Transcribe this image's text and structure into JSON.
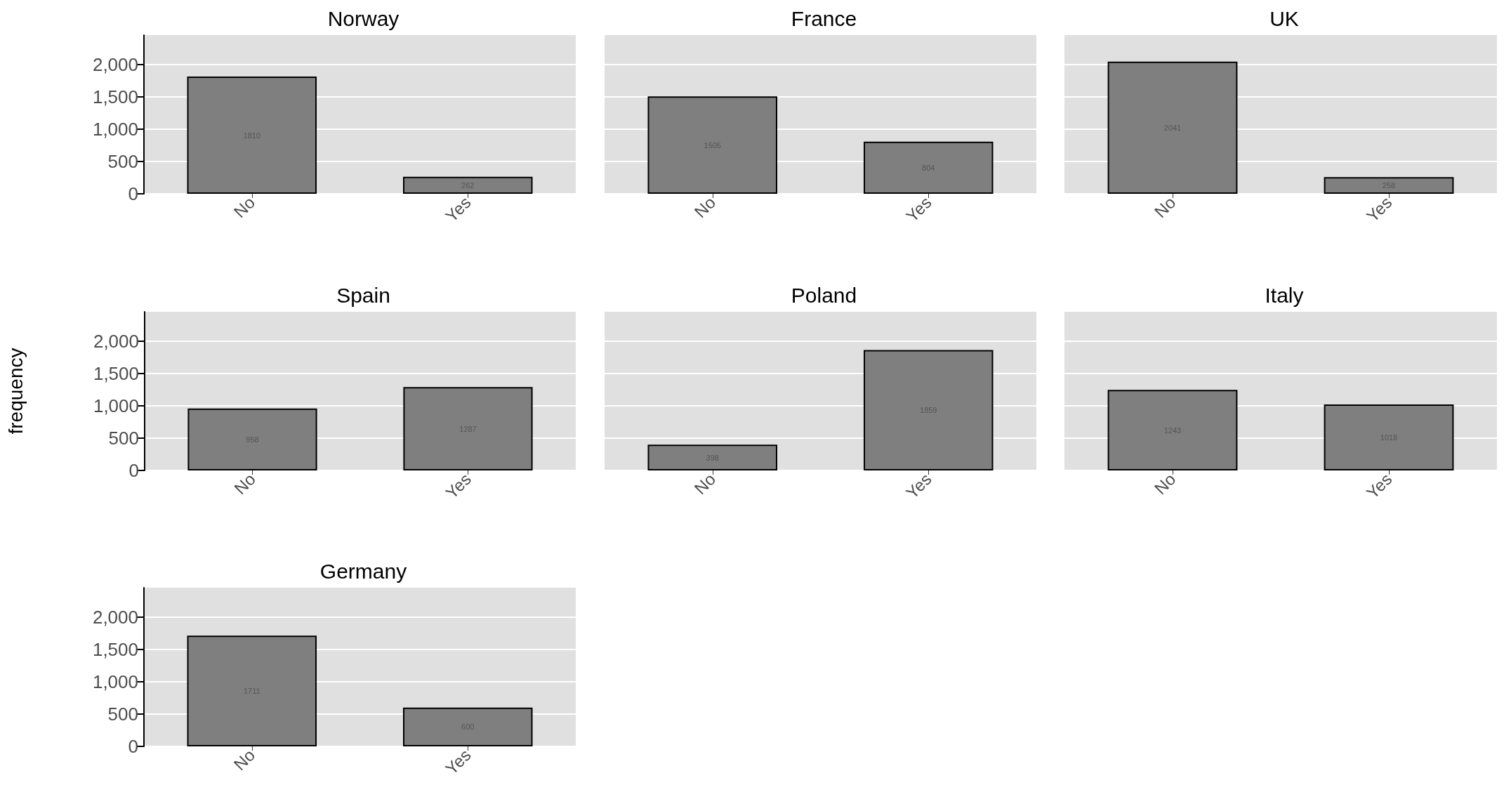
{
  "chart_data": [
    {
      "type": "bar",
      "title": "Norway",
      "categories": [
        "No",
        "Yes"
      ],
      "values": [
        1810,
        262
      ],
      "color": "#7f7f7f",
      "ylim": [
        0,
        2450
      ],
      "yticks": [
        0,
        500,
        {
          "value": 1000,
          "label": "1,000"
        },
        {
          "value": 1500,
          "label": "1,500"
        },
        {
          "value": 2000,
          "label": "2,000"
        }
      ],
      "grid": "y",
      "data_labels": true
    },
    {
      "type": "bar",
      "title": "France",
      "categories": [
        "No",
        "Yes"
      ],
      "values": [
        1505,
        804
      ],
      "color": "#7f7f7f",
      "ylim": [
        0,
        2450
      ],
      "yticks": [
        0,
        500,
        1000,
        1500,
        2000
      ],
      "grid": "y",
      "data_labels": true,
      "tick_labels": "x"
    },
    {
      "type": "bar",
      "title": "UK",
      "categories": [
        "No",
        "Yes"
      ],
      "values": [
        2041,
        258
      ],
      "color": "#7f7f7f",
      "ylim": [
        0,
        2450
      ],
      "yticks": [
        0,
        500,
        1000,
        1500,
        2000
      ],
      "grid": "y",
      "data_labels": true,
      "tick_labels": "x"
    },
    {
      "type": "bar",
      "title": "Spain",
      "ylabel": "frequency",
      "categories": [
        "No",
        "Yes"
      ],
      "values": [
        958,
        1287
      ],
      "color": "#7f7f7f",
      "ylim": [
        0,
        2450
      ],
      "yticks": [
        0,
        500,
        {
          "value": 1000,
          "label": "1,000"
        },
        {
          "value": 1500,
          "label": "1,500"
        },
        {
          "value": 2000,
          "label": "2,000"
        }
      ],
      "grid": "y",
      "data_labels": true
    },
    {
      "type": "bar",
      "title": "Poland",
      "categories": [
        "No",
        "Yes"
      ],
      "values": [
        398,
        1859
      ],
      "color": "#7f7f7f",
      "ylim": [
        0,
        2450
      ],
      "yticks": [
        0,
        500,
        1000,
        1500,
        2000
      ],
      "grid": "y",
      "data_labels": true,
      "tick_labels": "x"
    },
    {
      "type": "bar",
      "title": "Italy",
      "categories": [
        "No",
        "Yes"
      ],
      "values": [
        1243,
        1018
      ],
      "color": "#7f7f7f",
      "ylim": [
        0,
        2450
      ],
      "yticks": [
        0,
        500,
        1000,
        1500,
        2000
      ],
      "grid": "y",
      "data_labels": true,
      "tick_labels": "x"
    },
    {
      "type": "bar",
      "title": "Germany",
      "categories": [
        "No",
        "Yes"
      ],
      "values": [
        1711,
        600
      ],
      "color": "#7f7f7f",
      "ylim": [
        0,
        2450
      ],
      "yticks": [
        0,
        500,
        {
          "value": 1000,
          "label": "1,000"
        },
        {
          "value": 1500,
          "label": "1,500"
        },
        {
          "value": 2000,
          "label": "2,000"
        }
      ],
      "grid": "y",
      "data_labels": true
    }
  ]
}
